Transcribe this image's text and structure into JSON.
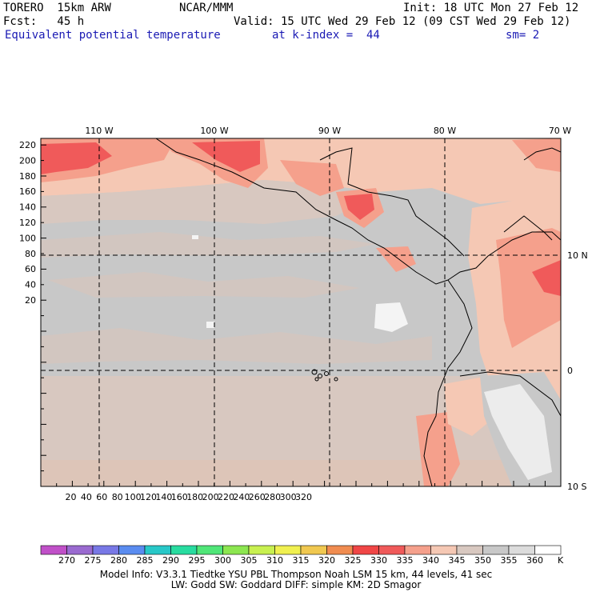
{
  "header": {
    "model": "TORERO  15km ARW",
    "org": "NCAR/MMM",
    "init": "Init: 18 UTC Mon 27 Feb 12",
    "fcst": "Fcst:   45 h",
    "valid": "Valid: 15 UTC Wed 29 Feb 12 (09 CST Wed 29 Feb 12)",
    "field": "Equivalent potential temperature",
    "level": "at k-index =  44",
    "smoothing": "sm= 2"
  },
  "axes": {
    "top_labels": [
      "110 W",
      "100 W",
      "90 W",
      "80 W",
      "70 W"
    ],
    "left_labels": [
      "220",
      "200",
      "180",
      "160",
      "140",
      "120",
      "100",
      "80",
      "60",
      "40",
      "20"
    ],
    "bottom_labels": [
      "20",
      "40",
      "60",
      "80",
      "100",
      "120",
      "140",
      "160",
      "180",
      "200",
      "220",
      "240",
      "260",
      "280",
      "300",
      "320"
    ],
    "right_labels": [
      "10 N",
      "0",
      "10 S"
    ]
  },
  "colorbar": {
    "labels": [
      "270",
      "275",
      "280",
      "285",
      "290",
      "295",
      "300",
      "305",
      "310",
      "315",
      "320",
      "325",
      "330",
      "335",
      "340",
      "345",
      "350",
      "355",
      "360"
    ],
    "unit": "K",
    "colors": [
      "#c050c8",
      "#9a6ad0",
      "#7878e6",
      "#5a8cf0",
      "#28c8c8",
      "#28dca0",
      "#50e678",
      "#8ce650",
      "#c8f050",
      "#f0f050",
      "#f0c850",
      "#f08c50",
      "#f04646",
      "#f05a5a",
      "#f5a08c",
      "#f5c8b4",
      "#d8c8c0",
      "#c8c8c8",
      "#dcdcdc",
      "#ffffff"
    ]
  },
  "field_colors": {
    "warm_peach": "#f5c8b4",
    "tan": "#d8c8c0",
    "gray": "#c8c8c8",
    "salmon": "#f5a08c",
    "red": "#f05a5a",
    "light": "#ececec"
  },
  "footer": {
    "line1": "Model Info: V3.3.1    Tiedtke YSU PBL   Thompson     Noah LSM  15 km,   44 levels,   41 sec",
    "line2": "LW: Godd SW: Goddard DIFF: simple KM: 2D Smagor"
  }
}
